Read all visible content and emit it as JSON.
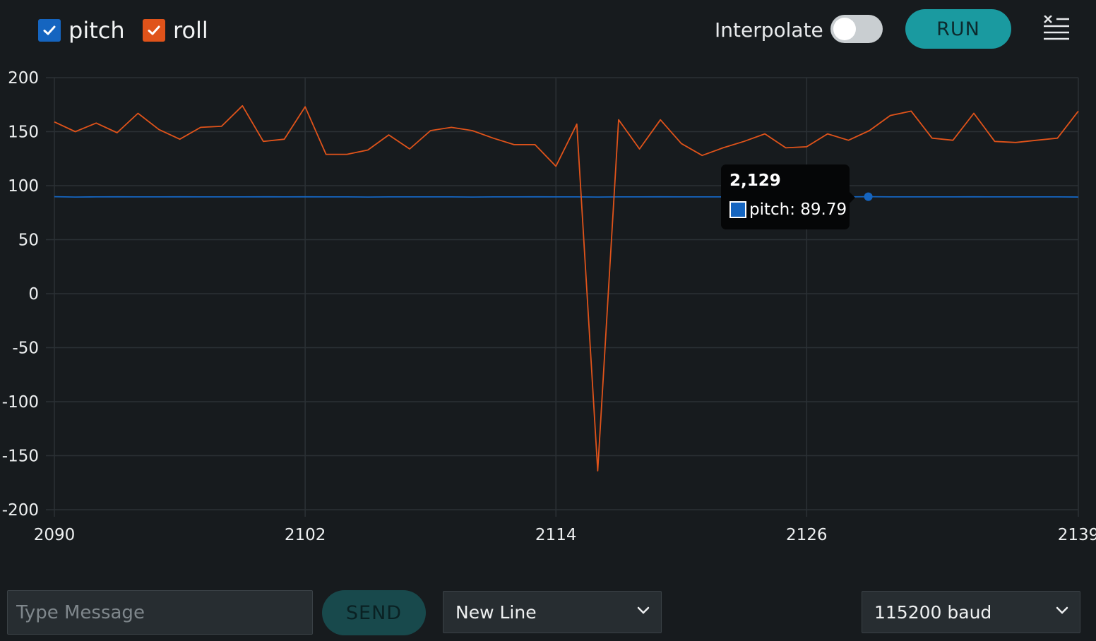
{
  "legend": {
    "items": [
      {
        "label": "pitch",
        "checked": true,
        "color": "#1565c0"
      },
      {
        "label": "roll",
        "checked": true,
        "color": "#e0531a"
      }
    ]
  },
  "toolbar": {
    "interpolate_label": "Interpolate",
    "interpolate_on": false,
    "run_label": "RUN",
    "clear_icon": "clear-output-icon"
  },
  "tooltip": {
    "title": "2,129",
    "series": "pitch",
    "value": "89.79",
    "text": "pitch: 89.79"
  },
  "chart_data": {
    "type": "line",
    "xlim": [
      2090,
      2139
    ],
    "ylim": [
      -200,
      200
    ],
    "x_ticks": [
      "2090",
      "2102",
      "2114",
      "2126",
      "2139"
    ],
    "x_tick_values": [
      2090,
      2102,
      2114,
      2126,
      2139
    ],
    "y_ticks": [
      "200",
      "150",
      "100",
      "50",
      "0",
      "-50",
      "-100",
      "-150",
      "-200"
    ],
    "y_tick_values": [
      200,
      150,
      100,
      50,
      0,
      -50,
      -100,
      -150,
      -200
    ],
    "grid": true,
    "x": [
      2090,
      2091,
      2092,
      2093,
      2094,
      2095,
      2096,
      2097,
      2098,
      2099,
      2100,
      2101,
      2102,
      2103,
      2104,
      2105,
      2106,
      2107,
      2108,
      2109,
      2110,
      2111,
      2112,
      2113,
      2114,
      2115,
      2116,
      2117,
      2118,
      2119,
      2120,
      2121,
      2122,
      2123,
      2124,
      2125,
      2126,
      2127,
      2128,
      2129,
      2130,
      2131,
      2132,
      2133,
      2134,
      2135,
      2136,
      2137,
      2138,
      2139
    ],
    "series": [
      {
        "name": "pitch",
        "color": "#1565c0",
        "values": [
          89.8,
          89.5,
          89.6,
          89.7,
          89.6,
          89.6,
          89.7,
          89.6,
          89.6,
          89.6,
          89.7,
          89.6,
          89.7,
          89.6,
          89.6,
          89.5,
          89.6,
          89.6,
          89.6,
          89.6,
          89.5,
          89.6,
          89.6,
          89.7,
          89.6,
          89.6,
          89.5,
          89.6,
          89.6,
          89.7,
          89.6,
          89.6,
          89.6,
          89.6,
          89.6,
          89.6,
          89.6,
          89.7,
          89.6,
          89.79,
          89.6,
          89.6,
          89.6,
          89.6,
          89.7,
          89.6,
          89.6,
          89.6,
          89.6,
          89.5
        ]
      },
      {
        "name": "roll",
        "color": "#e0531a",
        "values": [
          159,
          150,
          158,
          149,
          167,
          152,
          143,
          154,
          155,
          174,
          141,
          143,
          173,
          129,
          129,
          133,
          147,
          134,
          151,
          154,
          151,
          144,
          138,
          138,
          118,
          157,
          -164,
          161,
          134,
          161,
          139,
          128,
          135,
          141,
          148,
          135,
          136,
          148,
          142,
          151,
          165,
          169,
          144,
          142,
          167,
          141,
          140,
          142,
          144,
          169
        ]
      }
    ]
  },
  "bottom": {
    "message_placeholder": "Type Message",
    "send_label": "SEND",
    "line_ending": "New Line",
    "baud": "115200 baud"
  }
}
